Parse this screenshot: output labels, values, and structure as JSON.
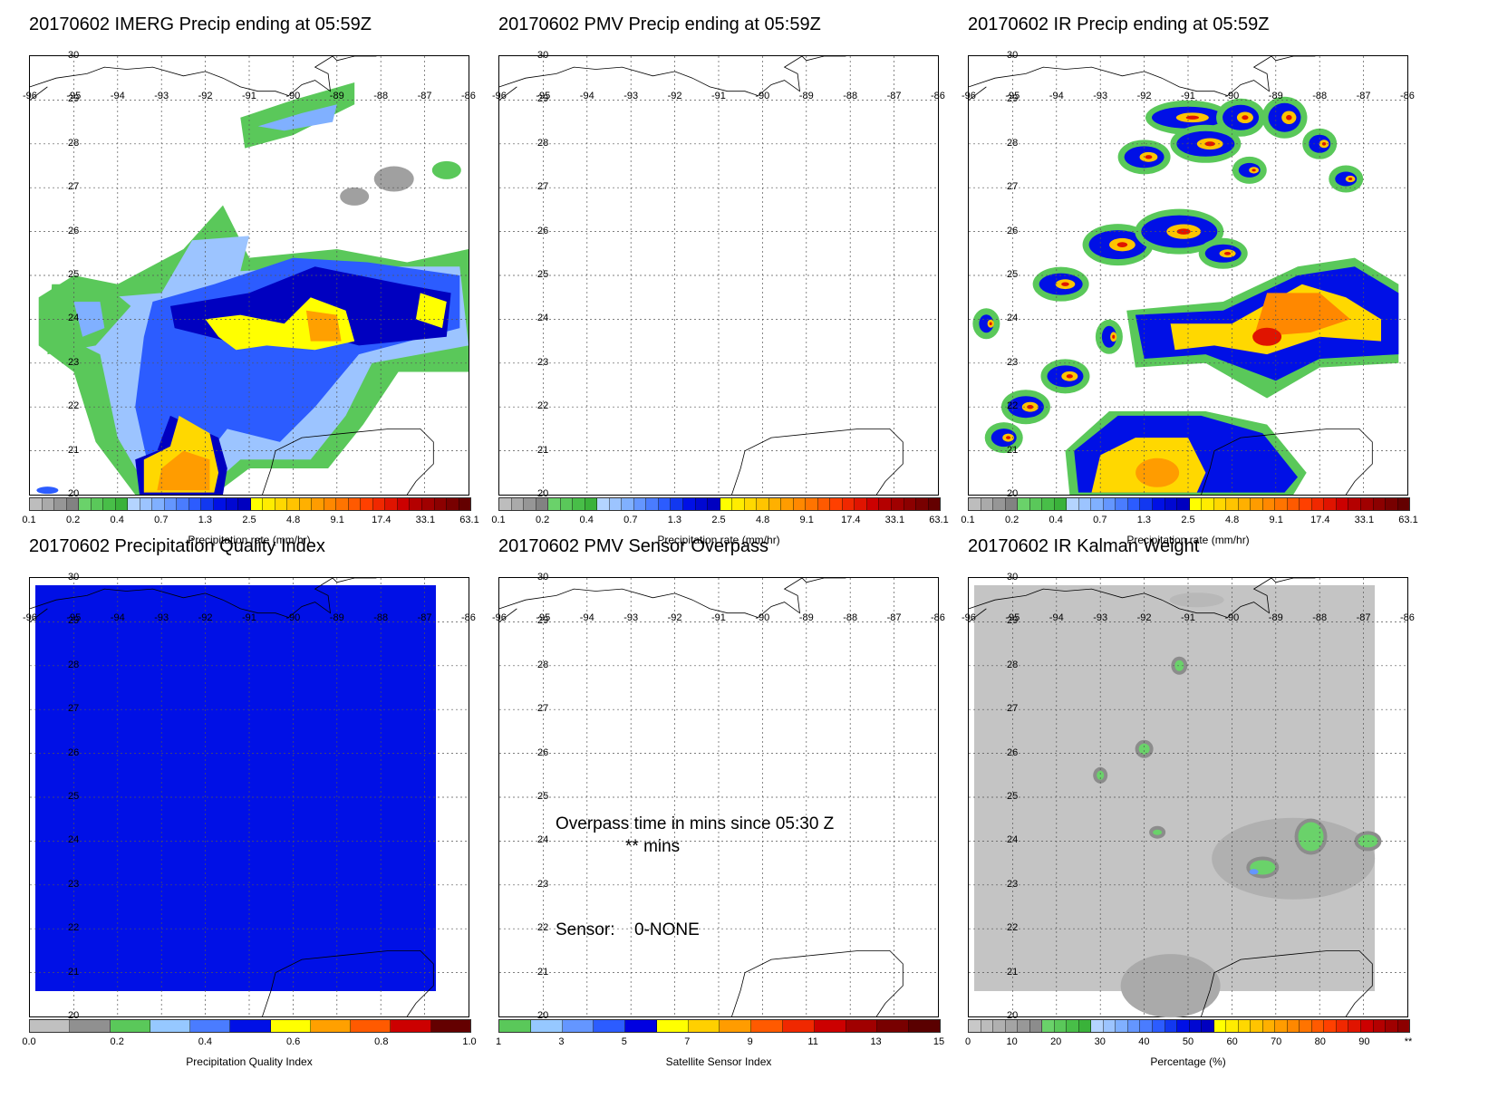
{
  "panels": [
    {
      "id": "imerg",
      "title": "20170602 IMERG Precip ending at 05:59Z",
      "field": "imerg",
      "colorbar": {
        "label": "Precipitation rate (mm/hr)",
        "ticks": [
          "0.1",
          "0.2",
          "0.4",
          "0.7",
          "1.3",
          "2.5",
          "4.8",
          "9.1",
          "17.4",
          "33.1",
          "63.1"
        ],
        "colors": [
          "#bdbdbd",
          "#aaaaaa",
          "#969696",
          "#828282",
          "#6ad26a",
          "#5ac85a",
          "#48be48",
          "#3ab23a",
          "#b4d4ff",
          "#9cc4ff",
          "#80b0ff",
          "#6496ff",
          "#4a7cff",
          "#2c5cff",
          "#1238f0",
          "#0010e6",
          "#0008d2",
          "#0000c0",
          "#ffff00",
          "#ffec00",
          "#ffd800",
          "#ffc400",
          "#ffb000",
          "#ff9c00",
          "#ff8800",
          "#ff7400",
          "#ff5a00",
          "#ff4000",
          "#f02800",
          "#e01400",
          "#cc0000",
          "#b40000",
          "#a00000",
          "#8c0000",
          "#780000",
          "#640000"
        ]
      }
    },
    {
      "id": "pmv",
      "title": "20170602 PMV Precip ending at 05:59Z",
      "field": "none",
      "colorbar": {
        "label": "Precipitation rate (mm/hr)",
        "ticks": [
          "0.1",
          "0.2",
          "0.4",
          "0.7",
          "1.3",
          "2.5",
          "4.8",
          "9.1",
          "17.4",
          "33.1",
          "63.1"
        ],
        "colors": [
          "#bdbdbd",
          "#aaaaaa",
          "#969696",
          "#828282",
          "#6ad26a",
          "#5ac85a",
          "#48be48",
          "#3ab23a",
          "#b4d4ff",
          "#9cc4ff",
          "#80b0ff",
          "#6496ff",
          "#4a7cff",
          "#2c5cff",
          "#1238f0",
          "#0010e6",
          "#0008d2",
          "#0000c0",
          "#ffff00",
          "#ffec00",
          "#ffd800",
          "#ffc400",
          "#ffb000",
          "#ff9c00",
          "#ff8800",
          "#ff7400",
          "#ff5a00",
          "#ff4000",
          "#f02800",
          "#e01400",
          "#cc0000",
          "#b40000",
          "#a00000",
          "#8c0000",
          "#780000",
          "#640000"
        ]
      }
    },
    {
      "id": "ir",
      "title": "20170602 IR Precip ending at 05:59Z",
      "field": "ir",
      "colorbar": {
        "label": "Precipitation rate (mm/hr)",
        "ticks": [
          "0.1",
          "0.2",
          "0.4",
          "0.7",
          "1.3",
          "2.5",
          "4.8",
          "9.1",
          "17.4",
          "33.1",
          "63.1"
        ],
        "colors": [
          "#bdbdbd",
          "#aaaaaa",
          "#969696",
          "#828282",
          "#6ad26a",
          "#5ac85a",
          "#48be48",
          "#3ab23a",
          "#b4d4ff",
          "#9cc4ff",
          "#80b0ff",
          "#6496ff",
          "#4a7cff",
          "#2c5cff",
          "#1238f0",
          "#0010e6",
          "#0008d2",
          "#0000c0",
          "#ffff00",
          "#ffec00",
          "#ffd800",
          "#ffc400",
          "#ffb000",
          "#ff9c00",
          "#ff8800",
          "#ff7400",
          "#ff5a00",
          "#ff4000",
          "#f02800",
          "#e01400",
          "#cc0000",
          "#b40000",
          "#a00000",
          "#8c0000",
          "#780000",
          "#640000"
        ]
      }
    },
    {
      "id": "pqi",
      "title": "20170602 Precipitation Quality Index",
      "field": "quality",
      "colorbar": {
        "label": "Precipitation Quality Index",
        "ticks": [
          "0.0",
          "0.2",
          "0.4",
          "0.6",
          "0.8",
          "1.0"
        ],
        "colors": [
          "#c0c0c0",
          "#909090",
          "#5ac85a",
          "#96c8ff",
          "#4a7cff",
          "#0010e6",
          "#ffff00",
          "#ffa000",
          "#ff5a00",
          "#cc0000",
          "#640000"
        ]
      }
    },
    {
      "id": "sensor",
      "title": "20170602 PMV Sensor Overpass",
      "field": "none",
      "overpass_text": "Overpass time in mins since 05:30 Z",
      "overpass_value": "** mins",
      "sensor_label": "Sensor:",
      "sensor_value": "0-NONE",
      "colorbar": {
        "label": "Satellite Sensor Index",
        "ticks": [
          "1",
          "3",
          "5",
          "7",
          "9",
          "11",
          "13",
          "15"
        ],
        "colors": [
          "#5ac85a",
          "#96c8ff",
          "#6496ff",
          "#2c5cff",
          "#0000e0",
          "#ffff00",
          "#ffd000",
          "#ff9c00",
          "#ff5a00",
          "#f02800",
          "#cc0000",
          "#a00000",
          "#780000",
          "#5a0000"
        ]
      }
    },
    {
      "id": "kalman",
      "title": "20170602 IR Kalman Weight",
      "field": "kalman",
      "colorbar": {
        "label": "Percentage (%)",
        "ticks": [
          "0",
          "10",
          "20",
          "30",
          "40",
          "50",
          "60",
          "70",
          "80",
          "90",
          "**"
        ],
        "colors": [
          "#c8c8c8",
          "#bcbcbc",
          "#b0b0b0",
          "#a4a4a4",
          "#989898",
          "#8c8c8c",
          "#6ad26a",
          "#5ac85a",
          "#48be48",
          "#3ab23a",
          "#b4d4ff",
          "#9cc4ff",
          "#80b0ff",
          "#6496ff",
          "#4a7cff",
          "#2c5cff",
          "#1238f0",
          "#0010e6",
          "#0008d2",
          "#0000c0",
          "#ffff00",
          "#ffec00",
          "#ffd800",
          "#ffc400",
          "#ffb000",
          "#ff9c00",
          "#ff8800",
          "#ff7400",
          "#ff5a00",
          "#ff4000",
          "#f02800",
          "#e01400",
          "#cc0000",
          "#b40000",
          "#a00000",
          "#8c0000"
        ]
      }
    }
  ],
  "map": {
    "lat_labels": [
      "30",
      "29",
      "28",
      "27",
      "26",
      "25",
      "24",
      "23",
      "22",
      "21",
      "20"
    ],
    "lon_labels": [
      "-96",
      "-95",
      "-94",
      "-93",
      "-92",
      "-91",
      "-90",
      "-89",
      "-88",
      "-87",
      "-86"
    ],
    "lat_range": [
      20,
      30
    ],
    "lon_range": [
      -96,
      -86
    ]
  }
}
